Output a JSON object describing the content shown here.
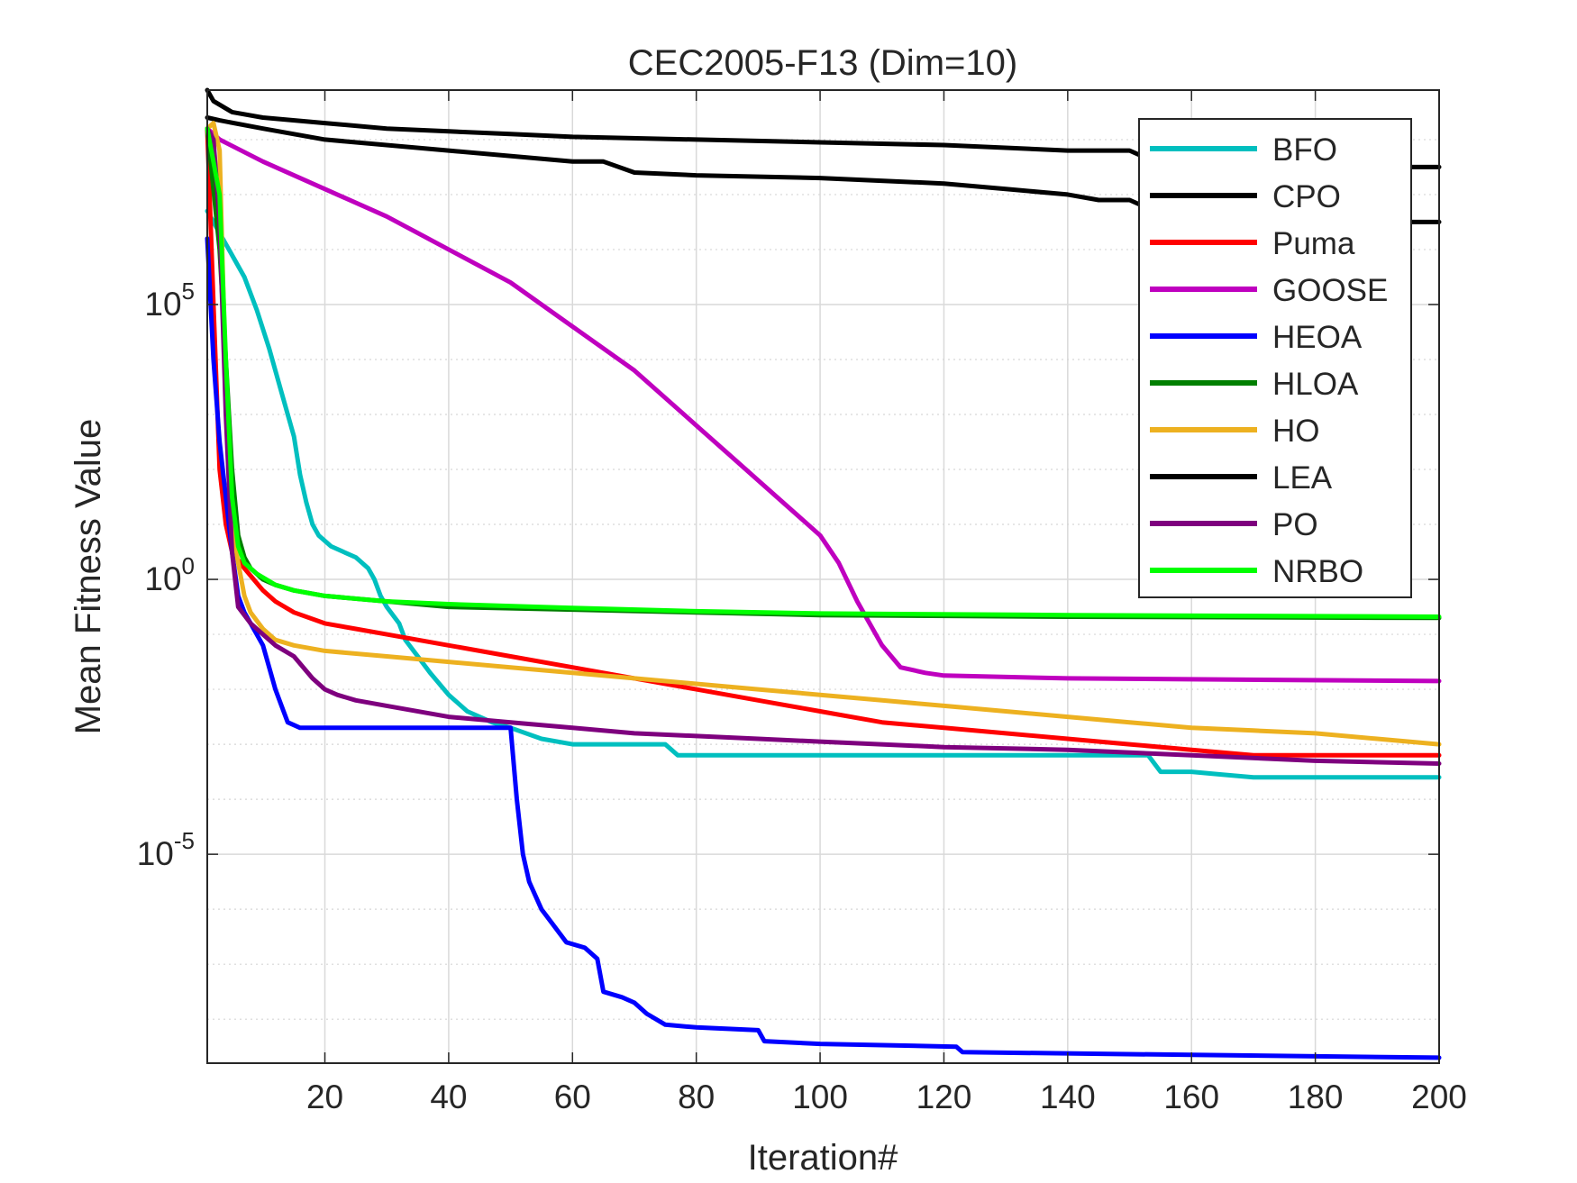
{
  "chart_data": {
    "type": "line",
    "title": "CEC2005-F13 (Dim=10)",
    "xlabel": "Iteration#",
    "ylabel": "Mean Fitness Value",
    "xlim": [
      1,
      200
    ],
    "ylim_log10": [
      -8.8,
      8.9
    ],
    "yscale": "log",
    "grid": true,
    "legend_position": "top-right",
    "x_ticks": [
      20,
      40,
      60,
      80,
      100,
      120,
      140,
      160,
      180,
      200
    ],
    "x_tick_labels": [
      "20",
      "40",
      "60",
      "80",
      "100",
      "120",
      "140",
      "160",
      "180",
      "200"
    ],
    "y_ticks_log10": [
      5,
      0,
      -5
    ],
    "y_tick_labels": [
      {
        "base": "10",
        "exp": "5"
      },
      {
        "base": "10",
        "exp": "0"
      },
      {
        "base": "10",
        "exp": "-5"
      }
    ],
    "series": [
      {
        "name": "BFO",
        "color": "#00BFBF",
        "log10_points": [
          [
            1,
            6.7
          ],
          [
            3,
            6.3
          ],
          [
            5,
            5.9
          ],
          [
            7,
            5.5
          ],
          [
            9,
            4.9
          ],
          [
            11,
            4.2
          ],
          [
            13,
            3.4
          ],
          [
            15,
            2.6
          ],
          [
            16,
            1.9
          ],
          [
            17,
            1.4
          ],
          [
            18,
            1.0
          ],
          [
            19,
            0.8
          ],
          [
            21,
            0.6
          ],
          [
            23,
            0.5
          ],
          [
            25,
            0.4
          ],
          [
            27,
            0.2
          ],
          [
            28,
            0.0
          ],
          [
            29,
            -0.3
          ],
          [
            30,
            -0.5
          ],
          [
            32,
            -0.8
          ],
          [
            33,
            -1.1
          ],
          [
            35,
            -1.4
          ],
          [
            37,
            -1.7
          ],
          [
            40,
            -2.1
          ],
          [
            43,
            -2.4
          ],
          [
            47,
            -2.6
          ],
          [
            50,
            -2.7
          ],
          [
            55,
            -2.9
          ],
          [
            60,
            -3.0
          ],
          [
            65,
            -3.0
          ],
          [
            75,
            -3.0
          ],
          [
            77,
            -3.2
          ],
          [
            80,
            -3.2
          ],
          [
            100,
            -3.2
          ],
          [
            130,
            -3.2
          ],
          [
            153,
            -3.2
          ],
          [
            155,
            -3.5
          ],
          [
            160,
            -3.5
          ],
          [
            165,
            -3.55
          ],
          [
            170,
            -3.6
          ],
          [
            200,
            -3.6
          ]
        ]
      },
      {
        "name": "CPO",
        "color": "#000000",
        "log10_points": [
          [
            1,
            8.4
          ],
          [
            3,
            8.35
          ],
          [
            10,
            8.2
          ],
          [
            20,
            8.0
          ],
          [
            40,
            7.8
          ],
          [
            60,
            7.6
          ],
          [
            65,
            7.6
          ],
          [
            70,
            7.4
          ],
          [
            80,
            7.35
          ],
          [
            100,
            7.3
          ],
          [
            120,
            7.2
          ],
          [
            130,
            7.1
          ],
          [
            140,
            7.0
          ],
          [
            145,
            6.9
          ],
          [
            150,
            6.9
          ],
          [
            152,
            6.8
          ],
          [
            155,
            6.8
          ],
          [
            160,
            6.8
          ],
          [
            165,
            6.7
          ],
          [
            175,
            6.6
          ],
          [
            185,
            6.6
          ],
          [
            195,
            6.5
          ],
          [
            200,
            6.5
          ]
        ]
      },
      {
        "name": "Puma",
        "color": "#FF0000",
        "log10_points": [
          [
            1,
            8.2
          ],
          [
            2,
            5.0
          ],
          [
            3,
            2.0
          ],
          [
            4,
            1.0
          ],
          [
            5,
            0.5
          ],
          [
            7,
            0.2
          ],
          [
            10,
            -0.2
          ],
          [
            12,
            -0.4
          ],
          [
            15,
            -0.6
          ],
          [
            20,
            -0.8
          ],
          [
            25,
            -0.9
          ],
          [
            30,
            -1.0
          ],
          [
            40,
            -1.2
          ],
          [
            50,
            -1.4
          ],
          [
            60,
            -1.6
          ],
          [
            70,
            -1.8
          ],
          [
            80,
            -2.0
          ],
          [
            90,
            -2.2
          ],
          [
            100,
            -2.4
          ],
          [
            110,
            -2.6
          ],
          [
            120,
            -2.7
          ],
          [
            130,
            -2.8
          ],
          [
            140,
            -2.9
          ],
          [
            150,
            -3.0
          ],
          [
            160,
            -3.1
          ],
          [
            170,
            -3.2
          ],
          [
            180,
            -3.2
          ],
          [
            200,
            -3.2
          ]
        ]
      },
      {
        "name": "GOOSE",
        "color": "#BF00BF",
        "log10_points": [
          [
            1,
            8.2
          ],
          [
            3,
            8.0
          ],
          [
            10,
            7.6
          ],
          [
            20,
            7.1
          ],
          [
            30,
            6.6
          ],
          [
            40,
            6.0
          ],
          [
            50,
            5.4
          ],
          [
            60,
            4.6
          ],
          [
            70,
            3.8
          ],
          [
            80,
            2.8
          ],
          [
            90,
            1.8
          ],
          [
            100,
            0.8
          ],
          [
            103,
            0.3
          ],
          [
            106,
            -0.4
          ],
          [
            108,
            -0.8
          ],
          [
            110,
            -1.2
          ],
          [
            113,
            -1.6
          ],
          [
            117,
            -1.7
          ],
          [
            120,
            -1.75
          ],
          [
            140,
            -1.8
          ],
          [
            200,
            -1.85
          ]
        ]
      },
      {
        "name": "HEOA",
        "color": "#0000FF",
        "log10_points": [
          [
            1,
            6.2
          ],
          [
            2,
            4.0
          ],
          [
            3,
            2.5
          ],
          [
            4,
            1.5
          ],
          [
            5,
            0.5
          ],
          [
            6,
            -0.3
          ],
          [
            7,
            -0.6
          ],
          [
            8,
            -0.8
          ],
          [
            9,
            -1.0
          ],
          [
            10,
            -1.2
          ],
          [
            11,
            -1.6
          ],
          [
            12,
            -2.0
          ],
          [
            13,
            -2.3
          ],
          [
            14,
            -2.6
          ],
          [
            16,
            -2.7
          ],
          [
            30,
            -2.7
          ],
          [
            50,
            -2.7
          ],
          [
            51,
            -4.0
          ],
          [
            52,
            -5.0
          ],
          [
            53,
            -5.5
          ],
          [
            55,
            -6.0
          ],
          [
            57,
            -6.3
          ],
          [
            59,
            -6.6
          ],
          [
            62,
            -6.7
          ],
          [
            64,
            -6.9
          ],
          [
            65,
            -7.5
          ],
          [
            68,
            -7.6
          ],
          [
            70,
            -7.7
          ],
          [
            72,
            -7.9
          ],
          [
            75,
            -8.1
          ],
          [
            80,
            -8.15
          ],
          [
            90,
            -8.2
          ],
          [
            91,
            -8.4
          ],
          [
            100,
            -8.45
          ],
          [
            122,
            -8.5
          ],
          [
            123,
            -8.6
          ],
          [
            160,
            -8.65
          ],
          [
            200,
            -8.7
          ]
        ]
      },
      {
        "name": "HLOA",
        "color": "#007F00",
        "log10_points": [
          [
            1,
            8.2
          ],
          [
            3,
            6.0
          ],
          [
            4,
            4.0
          ],
          [
            5,
            2.0
          ],
          [
            6,
            0.8
          ],
          [
            7,
            0.4
          ],
          [
            8,
            0.2
          ],
          [
            10,
            0.0
          ],
          [
            12,
            -0.1
          ],
          [
            15,
            -0.2
          ],
          [
            20,
            -0.3
          ],
          [
            30,
            -0.4
          ],
          [
            40,
            -0.5
          ],
          [
            60,
            -0.55
          ],
          [
            80,
            -0.6
          ],
          [
            100,
            -0.65
          ],
          [
            140,
            -0.68
          ],
          [
            200,
            -0.7
          ]
        ]
      },
      {
        "name": "HO",
        "color": "#EDB120",
        "log10_points": [
          [
            1,
            8.2
          ],
          [
            2,
            8.3
          ],
          [
            3,
            7.8
          ],
          [
            4,
            3.5
          ],
          [
            5,
            1.0
          ],
          [
            6,
            0.3
          ],
          [
            7,
            -0.3
          ],
          [
            8,
            -0.6
          ],
          [
            10,
            -0.9
          ],
          [
            12,
            -1.1
          ],
          [
            15,
            -1.2
          ],
          [
            20,
            -1.3
          ],
          [
            30,
            -1.4
          ],
          [
            40,
            -1.5
          ],
          [
            50,
            -1.6
          ],
          [
            60,
            -1.7
          ],
          [
            70,
            -1.8
          ],
          [
            80,
            -1.9
          ],
          [
            90,
            -2.0
          ],
          [
            100,
            -2.1
          ],
          [
            110,
            -2.2
          ],
          [
            120,
            -2.3
          ],
          [
            130,
            -2.4
          ],
          [
            140,
            -2.5
          ],
          [
            150,
            -2.6
          ],
          [
            160,
            -2.7
          ],
          [
            170,
            -2.75
          ],
          [
            180,
            -2.8
          ],
          [
            190,
            -2.9
          ],
          [
            200,
            -3.0
          ]
        ]
      },
      {
        "name": "LEA",
        "color": "#000000",
        "log10_points": [
          [
            1,
            8.9
          ],
          [
            2,
            8.7
          ],
          [
            5,
            8.5
          ],
          [
            10,
            8.4
          ],
          [
            20,
            8.3
          ],
          [
            30,
            8.2
          ],
          [
            40,
            8.15
          ],
          [
            50,
            8.1
          ],
          [
            60,
            8.05
          ],
          [
            80,
            8.0
          ],
          [
            100,
            7.95
          ],
          [
            120,
            7.9
          ],
          [
            140,
            7.8
          ],
          [
            150,
            7.8
          ],
          [
            152,
            7.7
          ],
          [
            160,
            7.6
          ],
          [
            170,
            7.55
          ],
          [
            180,
            7.5
          ],
          [
            190,
            7.5
          ],
          [
            195,
            7.5
          ],
          [
            200,
            7.5
          ]
        ]
      },
      {
        "name": "PO",
        "color": "#7E007E",
        "log10_points": [
          [
            1,
            8.2
          ],
          [
            2,
            8.0
          ],
          [
            3,
            6.5
          ],
          [
            4,
            3.0
          ],
          [
            5,
            0.5
          ],
          [
            6,
            -0.5
          ],
          [
            8,
            -0.8
          ],
          [
            10,
            -1.0
          ],
          [
            12,
            -1.2
          ],
          [
            15,
            -1.4
          ],
          [
            18,
            -1.8
          ],
          [
            20,
            -2.0
          ],
          [
            22,
            -2.1
          ],
          [
            25,
            -2.2
          ],
          [
            30,
            -2.3
          ],
          [
            40,
            -2.5
          ],
          [
            50,
            -2.6
          ],
          [
            60,
            -2.7
          ],
          [
            70,
            -2.8
          ],
          [
            80,
            -2.85
          ],
          [
            90,
            -2.9
          ],
          [
            100,
            -2.95
          ],
          [
            120,
            -3.05
          ],
          [
            140,
            -3.1
          ],
          [
            160,
            -3.2
          ],
          [
            180,
            -3.3
          ],
          [
            200,
            -3.35
          ]
        ]
      },
      {
        "name": "NRBO",
        "color": "#00FF00",
        "log10_points": [
          [
            1,
            8.2
          ],
          [
            3,
            7.0
          ],
          [
            4,
            4.0
          ],
          [
            5,
            1.5
          ],
          [
            6,
            0.6
          ],
          [
            7,
            0.3
          ],
          [
            9,
            0.1
          ],
          [
            12,
            -0.1
          ],
          [
            15,
            -0.2
          ],
          [
            20,
            -0.3
          ],
          [
            30,
            -0.4
          ],
          [
            40,
            -0.45
          ],
          [
            60,
            -0.52
          ],
          [
            80,
            -0.58
          ],
          [
            100,
            -0.62
          ],
          [
            140,
            -0.65
          ],
          [
            200,
            -0.68
          ]
        ]
      }
    ]
  }
}
